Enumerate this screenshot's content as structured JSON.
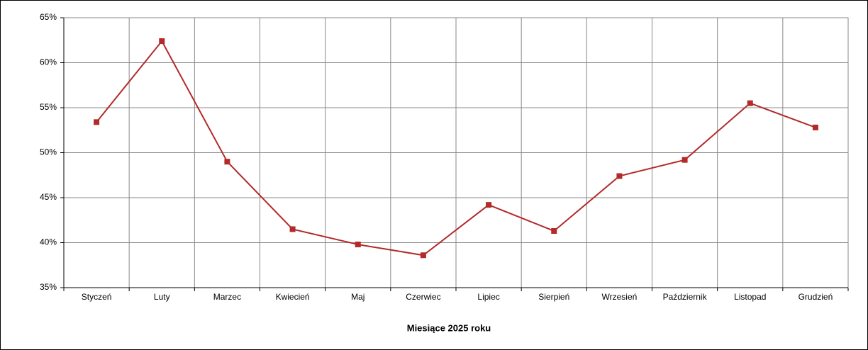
{
  "chart_data": {
    "type": "line",
    "x_label": "Miesiące 2025  roku",
    "categories": [
      "Styczeń",
      "Luty",
      "Marzec",
      "Kwiecień",
      "Maj",
      "Czerwiec",
      "Lipiec",
      "Sierpień",
      "Wrzesień",
      "Październik",
      "Listopad",
      "Grudzień"
    ],
    "values": [
      53.4,
      62.4,
      49.0,
      41.5,
      39.8,
      38.6,
      44.2,
      41.3,
      47.4,
      49.2,
      55.5,
      52.8
    ],
    "color": "#b22a2a",
    "ylim": [
      35,
      65
    ],
    "yticks": [
      {
        "value": 35,
        "label": "35%"
      },
      {
        "value": 40,
        "label": "40%"
      },
      {
        "value": 45,
        "label": "45%"
      },
      {
        "value": 50,
        "label": "50%"
      },
      {
        "value": 55,
        "label": "55%"
      },
      {
        "value": 60,
        "label": "60%"
      },
      {
        "value": 65,
        "label": "65%"
      }
    ],
    "grid": true
  }
}
